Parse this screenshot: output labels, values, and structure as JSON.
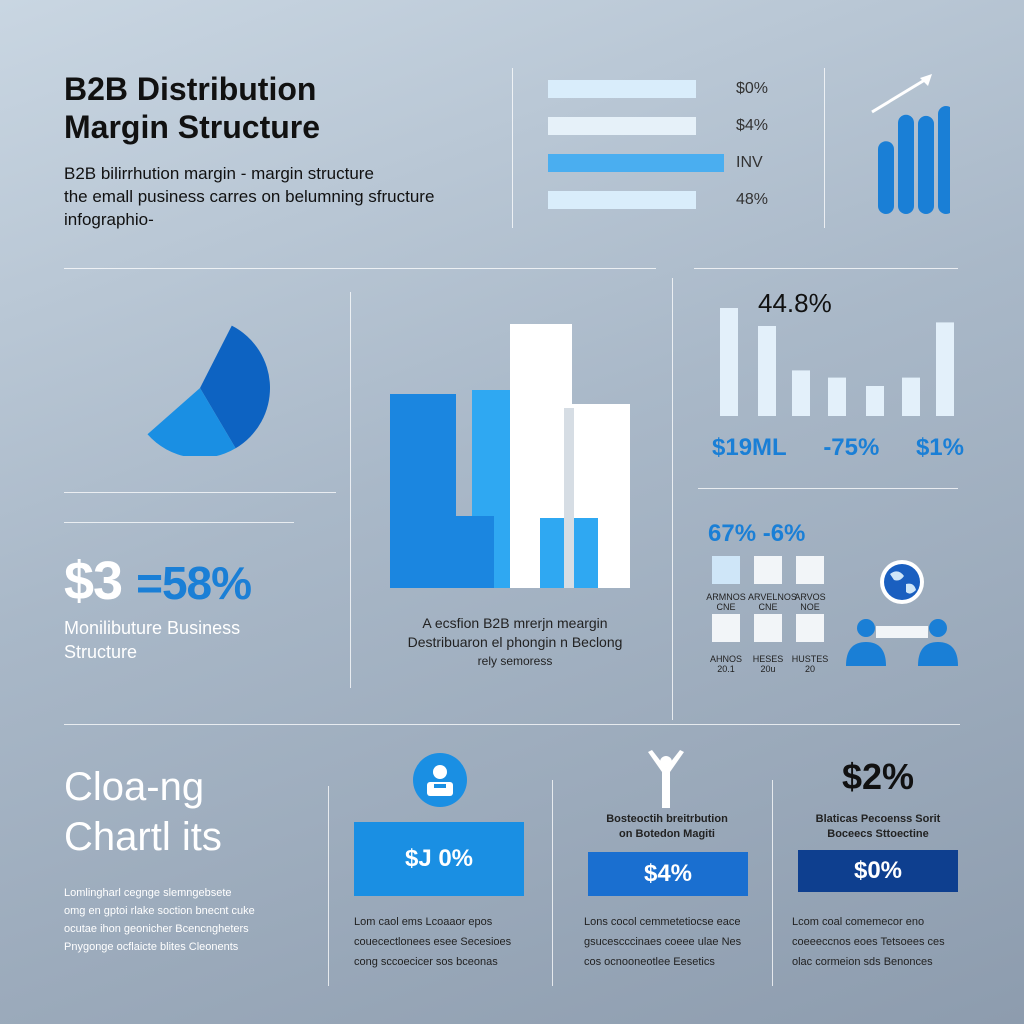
{
  "header": {
    "title_line1": "B2B Distribution",
    "title_line2": "Margin Structure",
    "desc_line1": "B2B bilirrhution margin - margin structure",
    "desc_line2": "the emall pusiness carres on belumning sfructure",
    "desc_line3": "infographio-"
  },
  "top_bars": {
    "items": [
      {
        "label": "$0%",
        "value": 0.74
      },
      {
        "label": "$4%",
        "value": 0.74
      },
      {
        "label": "INV",
        "value": 0.88
      },
      {
        "label": "48%",
        "value": 0.74
      }
    ],
    "colors": [
      "#d9edfb",
      "#e6f1f9",
      "#4aaef0",
      "#d9edfb"
    ]
  },
  "trend_chart": {
    "values": [
      0.48,
      0.72,
      0.71,
      0.8
    ],
    "color": "#1a7fd6",
    "arrow_icon": "trend-arrow-icon"
  },
  "pie_chart": {
    "slices": [
      {
        "share": 0.34,
        "color": "#0d63c2"
      },
      {
        "share": 0.22,
        "color": "#1a8fe3"
      }
    ]
  },
  "center_chart": {
    "colors": [
      "#1b86e0",
      "#2fa8f2",
      "#ffffff",
      "#d6dde4"
    ]
  },
  "left_stats": {
    "big_value": "$3",
    "big_pct": "=58%",
    "line1": "Monilibuture Business",
    "line2": "Structure"
  },
  "center_caption": {
    "line1": "A ecsfion B2B mrerjn meargin",
    "line2": "Destribuaron el phongin n Beclong",
    "line3": "rely semoress"
  },
  "right_bars": {
    "top_label": "44.8%",
    "values": [
      0.9,
      0.75,
      0.38,
      0.32,
      0.25,
      0.32,
      0.78
    ],
    "color": "#e3f0fa",
    "labels": [
      "$19ML",
      "-75%",
      "$1%"
    ]
  },
  "right_mid": {
    "headline": "67% -6%",
    "row1_labels": [
      "ARMNOS CNE",
      "ARVELNOS CNE",
      "ARVOS NOE"
    ],
    "row2_labels": [
      "AHNOS 20.1",
      "HESES 20u",
      "HUSTES 20"
    ],
    "globe_icon": "globe-icon",
    "people_icon": "people-meeting-icon"
  },
  "bottom_left": {
    "title_line1": "Cloa-ng",
    "title_line2": "Chartl its",
    "lines": [
      "Lomlingharl cegnge slemngebsete",
      "omg en gptoi rlake soction bnecnt cuke",
      "ocutae ihon geonicher Bcencngheters",
      "Pnygonge ocflaicte blites Cleonents"
    ]
  },
  "bottom_cols": [
    {
      "icon": "user-badge-icon",
      "caption_line1": "",
      "caption_line2": "",
      "value": "$J 0%",
      "box_color": "#1a8fe3",
      "lines": [
        "Lom caol ems Lcoaaor epos",
        "couecectlonees esee Secesioes",
        "cong sccoecicer sos bceonas"
      ]
    },
    {
      "icon": "person-arms-up-icon",
      "caption_line1": "Bosteoctih breitrbution",
      "caption_line2": "on Botedon Magiti",
      "value": "$4%",
      "box_color": "#1a6fd0",
      "lines": [
        "Lons cocol cemmetetiocse eace",
        "gsucescccinaes coeee ulae Nes",
        "cos ocnooneotlee Eesetics"
      ]
    },
    {
      "icon": "",
      "headline": "$2%",
      "caption_line1": "Blaticas Pecoenss Sorit",
      "caption_line2": "Boceecs Sttoectine",
      "value": "$0%",
      "box_color": "#0e3f8f",
      "lines": [
        "Lcom coal comemecor eno",
        "coeeeccnos eoes Tetsoees ces",
        "olac cormeion sds Benonces"
      ]
    }
  ]
}
